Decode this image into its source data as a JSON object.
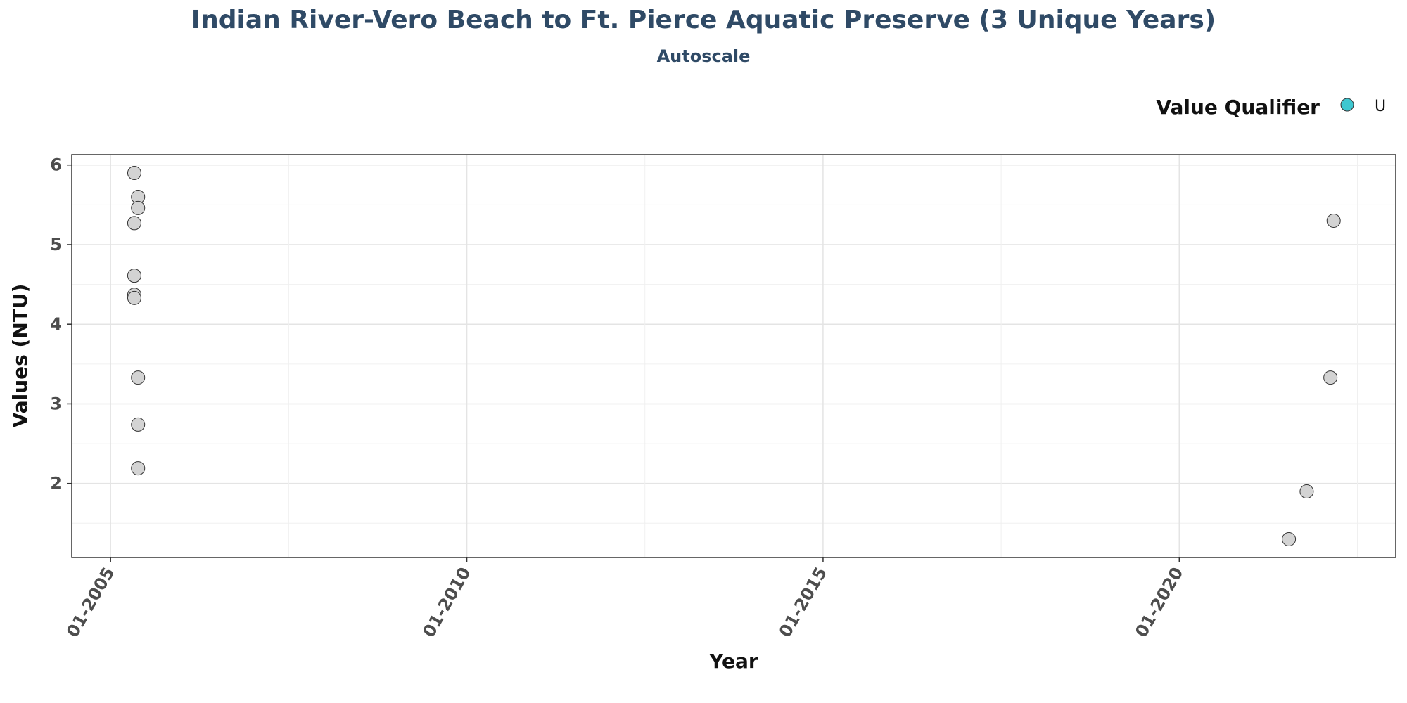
{
  "chart_data": {
    "type": "scatter",
    "title": "Indian River-Vero Beach to Ft. Pierce Aquatic Preserve (3 Unique Years)",
    "subtitle": "Autoscale",
    "xlabel": "Year",
    "ylabel": "Values (NTU)",
    "x_ticks": [
      "01-2005",
      "01-2010",
      "01-2015",
      "01-2020"
    ],
    "y_ticks": [
      "2",
      "3",
      "4",
      "5",
      "6"
    ],
    "xlim": [
      "2004-06-15",
      "2023-01-15"
    ],
    "ylim": [
      1.07,
      6.13
    ],
    "legend": {
      "title": "Value Qualifier",
      "position": "top-right",
      "items": [
        {
          "label": "U",
          "color": "#3ec7d0"
        }
      ]
    },
    "point_fill": "#d3d3d3",
    "point_stroke": "#333333",
    "grid": true,
    "points": [
      {
        "x": "2005-05-01",
        "y": 5.9
      },
      {
        "x": "2005-05-20",
        "y": 5.6
      },
      {
        "x": "2005-05-20",
        "y": 5.46
      },
      {
        "x": "2005-05-01",
        "y": 5.27
      },
      {
        "x": "2005-05-01",
        "y": 4.61
      },
      {
        "x": "2005-05-01",
        "y": 4.37
      },
      {
        "x": "2005-05-01",
        "y": 4.33
      },
      {
        "x": "2005-05-20",
        "y": 3.33
      },
      {
        "x": "2005-05-20",
        "y": 2.74
      },
      {
        "x": "2005-05-20",
        "y": 2.19
      },
      {
        "x": "2022-03-01",
        "y": 5.3
      },
      {
        "x": "2022-02-15",
        "y": 3.33
      },
      {
        "x": "2021-10-15",
        "y": 1.9
      },
      {
        "x": "2021-07-15",
        "y": 1.3
      }
    ]
  }
}
